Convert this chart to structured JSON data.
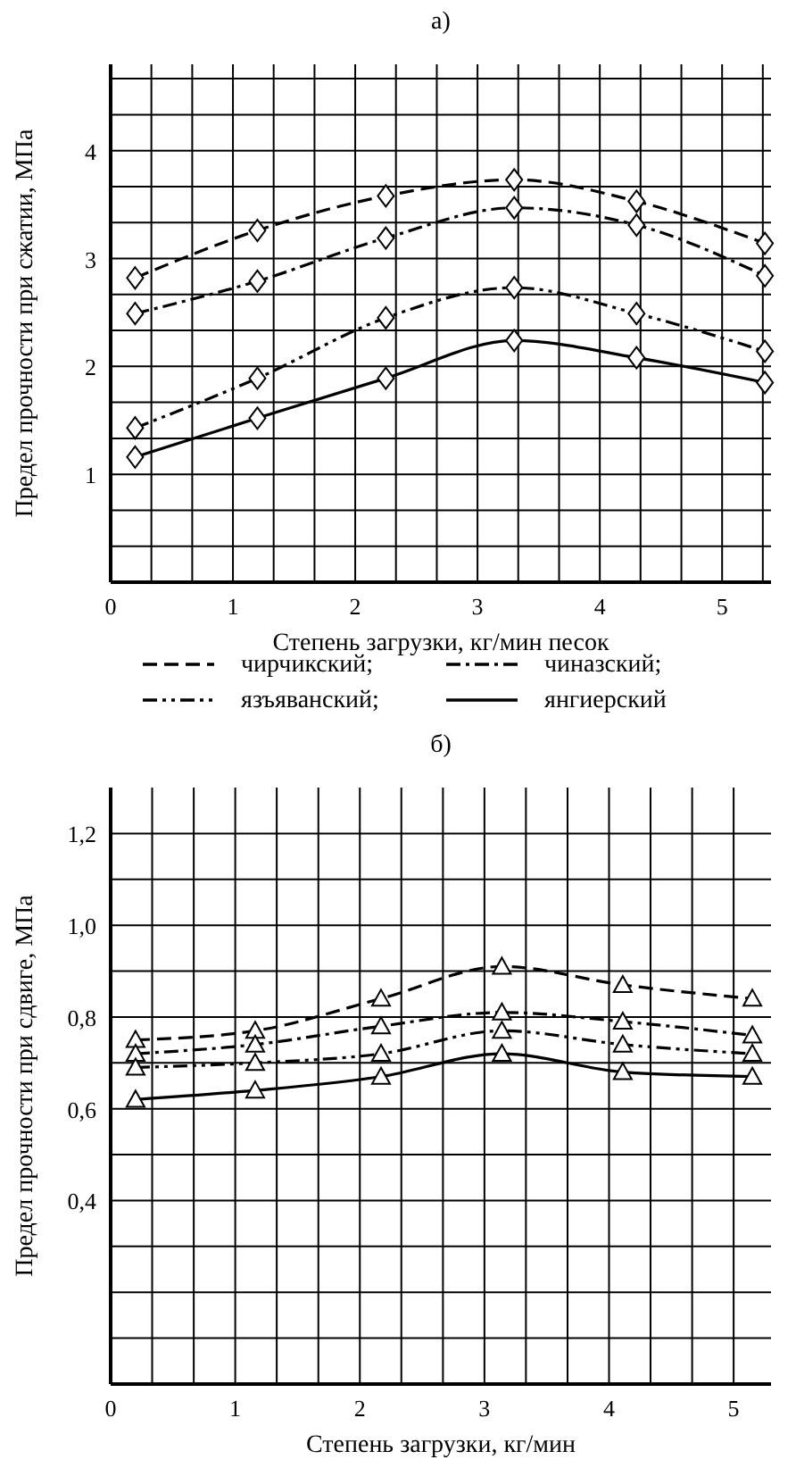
{
  "chart_data": [
    {
      "type": "line",
      "title": "а)",
      "xlabel": "Степень загрузки, кг/мин песок",
      "ylabel": "Предел прочности при сжатии, МПа",
      "xlim": [
        0,
        5.4
      ],
      "ylim": [
        0,
        4.8
      ],
      "xticks": [
        0,
        {
          "value": 0.333,
          "label": null
        },
        {
          "value": 0.667,
          "label": null
        },
        1,
        {
          "value": 1.333,
          "label": null
        },
        {
          "value": 1.667,
          "label": null
        },
        2,
        {
          "value": 2.333,
          "label": null
        },
        {
          "value": 2.667,
          "label": null
        },
        3,
        {
          "value": 3.333,
          "label": null
        },
        {
          "value": 3.667,
          "label": null
        },
        4,
        {
          "value": 4.333,
          "label": null
        },
        {
          "value": 4.667,
          "label": null
        },
        5,
        {
          "value": 5.333,
          "label": null
        }
      ],
      "yticks": [
        {
          "value": 0,
          "label": null
        },
        {
          "value": 0.333,
          "label": null
        },
        {
          "value": 0.667,
          "label": null
        },
        1,
        {
          "value": 1.333,
          "label": null
        },
        {
          "value": 1.667,
          "label": null
        },
        2,
        {
          "value": 2.333,
          "label": null
        },
        {
          "value": 2.667,
          "label": null
        },
        3,
        {
          "value": 3.333,
          "label": null
        },
        {
          "value": 3.667,
          "label": null
        },
        4,
        {
          "value": 4.333,
          "label": null
        },
        {
          "value": 4.667,
          "label": null
        }
      ],
      "grid": true,
      "legend": "bottom",
      "marker": "diamond",
      "x": [
        0.2,
        1.2,
        2.25,
        3.3,
        4.3,
        5.35
      ],
      "series": [
        {
          "name": "чирчикский;",
          "color": "#000000",
          "line_style": "dashed",
          "values": [
            2.82,
            3.26,
            3.58,
            3.73,
            3.53,
            3.14
          ]
        },
        {
          "name": "чиназский;",
          "color": "#000000",
          "line_style": "dashdot",
          "values": [
            2.49,
            2.79,
            3.19,
            3.47,
            3.31,
            2.84
          ]
        },
        {
          "name": "язъяванский;",
          "color": "#000000",
          "line_style": "dashdotdot",
          "values": [
            1.43,
            1.89,
            2.45,
            2.73,
            2.49,
            2.14
          ]
        },
        {
          "name": "янгиерский",
          "color": "#000000",
          "line_style": "solid",
          "values": [
            1.16,
            1.52,
            1.89,
            2.24,
            2.08,
            1.85
          ]
        }
      ]
    },
    {
      "type": "line",
      "title": "б)",
      "xlabel": "Степень загрузки, кг/мин",
      "ylabel": "Предел прочности при сдвиге, МПа",
      "xlim": [
        0,
        5.3
      ],
      "ylim": [
        0,
        1.3
      ],
      "xticks": [
        0,
        {
          "value": 0.333,
          "label": null
        },
        {
          "value": 0.667,
          "label": null
        },
        1,
        {
          "value": 1.333,
          "label": null
        },
        {
          "value": 1.667,
          "label": null
        },
        2,
        {
          "value": 2.333,
          "label": null
        },
        {
          "value": 2.667,
          "label": null
        },
        3,
        {
          "value": 3.333,
          "label": null
        },
        {
          "value": 3.667,
          "label": null
        },
        4,
        {
          "value": 4.333,
          "label": null
        },
        {
          "value": 4.667,
          "label": null
        },
        5
      ],
      "yticks": [
        {
          "value": 0,
          "label": null
        },
        {
          "value": 0.1,
          "label": null
        },
        {
          "value": 0.2,
          "label": null
        },
        {
          "value": 0.3,
          "label": null
        },
        {
          "value": 0.4,
          "label": "0,4"
        },
        {
          "value": 0.5,
          "label": null
        },
        {
          "value": 0.6,
          "label": "0,6"
        },
        {
          "value": 0.7,
          "label": null
        },
        {
          "value": 0.8,
          "label": "0,8"
        },
        {
          "value": 0.9,
          "label": null
        },
        {
          "value": 1.0,
          "label": "1,0"
        },
        {
          "value": 1.1,
          "label": null
        },
        {
          "value": 1.2,
          "label": "1,2"
        }
      ],
      "grid": true,
      "marker": "triangle",
      "x": [
        0.2,
        1.16,
        2.17,
        3.14,
        4.11,
        5.15
      ],
      "series": [
        {
          "color": "#000000",
          "line_style": "dashed",
          "values": [
            0.75,
            0.77,
            0.84,
            0.91,
            0.87,
            0.84
          ]
        },
        {
          "color": "#000000",
          "line_style": "dashdot",
          "values": [
            0.72,
            0.74,
            0.78,
            0.81,
            0.79,
            0.76
          ]
        },
        {
          "color": "#000000",
          "line_style": "dashdotdot",
          "values": [
            0.69,
            0.7,
            0.72,
            0.77,
            0.74,
            0.72
          ]
        },
        {
          "color": "#000000",
          "line_style": "solid",
          "values": [
            0.62,
            0.64,
            0.67,
            0.72,
            0.68,
            0.67
          ]
        }
      ]
    }
  ]
}
